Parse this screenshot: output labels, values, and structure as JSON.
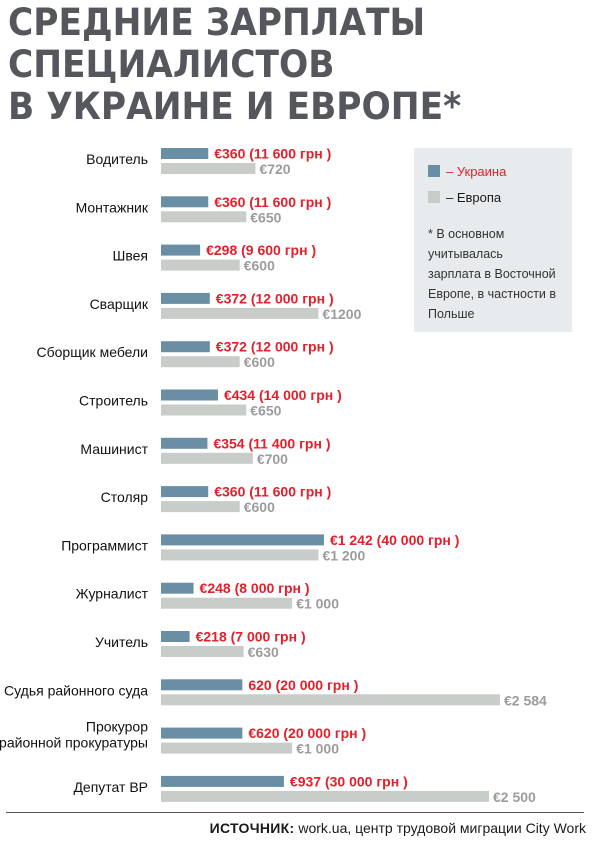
{
  "title": {
    "line1": "Средние зарплаты",
    "line2": "специалистов",
    "line3": "в Украине и Европе*"
  },
  "legend": {
    "ukraine_label": "– Украина",
    "europe_label": "– Европа",
    "note": "* В основном учитывалась зарплата в Восточной Европе, в частности в Польше"
  },
  "source": {
    "label": "ИСТОЧНИК:",
    "text": "work.ua, центр трудовой миграции City Work"
  },
  "colors": {
    "ukraine_bar": "#6a8ea3",
    "europe_bar": "#c8cdc9",
    "ukraine_text": "#e3202b",
    "europe_text": "#9c9c9c",
    "legend_bg": "#e8ebee",
    "title": "#55575c"
  },
  "chart_data": {
    "type": "bar",
    "orientation": "horizontal",
    "categories": [
      [
        "Водитель"
      ],
      [
        "Монтажник"
      ],
      [
        "Швея"
      ],
      [
        "Сварщик"
      ],
      [
        "Сборщик мебели"
      ],
      [
        "Строитель"
      ],
      [
        "Машинист"
      ],
      [
        "Столяр"
      ],
      [
        "Программист"
      ],
      [
        "Журналист"
      ],
      [
        "Учитель"
      ],
      [
        "Судья районного суда"
      ],
      [
        "Прокурор",
        "районной прокуратуры"
      ],
      [
        "Депутат ВР"
      ]
    ],
    "series": [
      {
        "name": "Украина",
        "values": [
          360,
          360,
          298,
          372,
          372,
          434,
          354,
          360,
          1242,
          248,
          218,
          620,
          620,
          937
        ],
        "labels": [
          "€360",
          "€360",
          "€298",
          "€372",
          "€372",
          "€434",
          "€354",
          "€360",
          "€1 242",
          "€248",
          "€218",
          "620",
          "€620",
          "€937"
        ],
        "uah_labels": [
          "(11 600 грн )",
          "(11 600 грн )",
          "(9 600 грн )",
          "(12 000 грн )",
          "(12 000 грн )",
          "(14 000 грн )",
          "(11 400 грн )",
          "(11 600 грн )",
          "(40 000 грн )",
          "(8 000 грн )",
          "(7 000 грн )",
          "(20 000 грн )",
          "(20 000 грн )",
          "(30 000 грн )"
        ]
      },
      {
        "name": "Европа",
        "values": [
          720,
          650,
          600,
          1200,
          600,
          650,
          700,
          600,
          1200,
          1000,
          630,
          2584,
          1000,
          2500
        ],
        "labels": [
          "€720",
          "€650",
          "€600",
          "€1200",
          "€600",
          "€650",
          "€700",
          "€600",
          "€1 200",
          "€1 000",
          "€630",
          "€2 584",
          "€1 000",
          "€2 500"
        ]
      }
    ],
    "grid": false,
    "legend_position": "top-right"
  }
}
